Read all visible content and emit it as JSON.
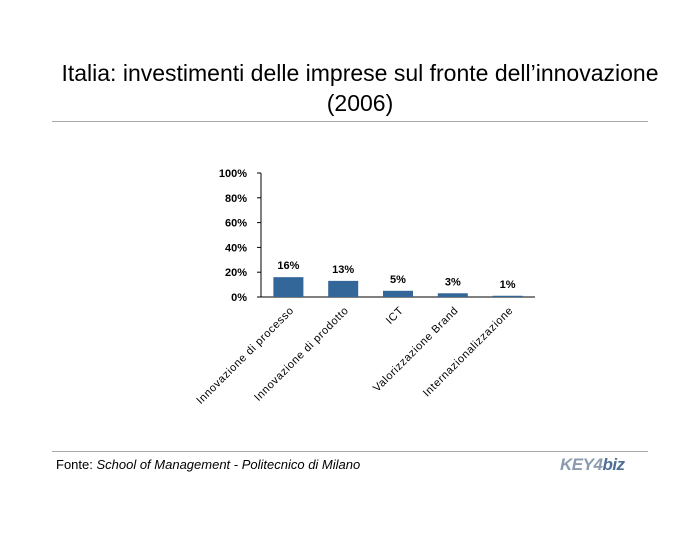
{
  "slide": {
    "title_line1": "Italia: investimenti delle imprese sul fronte dell’innovazione",
    "title_line2": "(2006)"
  },
  "footer": {
    "prefix": "Fonte: ",
    "source": "School of Management - Politecnico di Milano"
  },
  "logo": {
    "text_key": "KEY",
    "text_four": "4",
    "text_biz": "biz"
  },
  "colors": {
    "bar": "#336699",
    "axis": "#000000",
    "rule": "#a8a8a8"
  },
  "chart_data": {
    "type": "bar",
    "categories": [
      "Innovazione di processo",
      "Innovazione di prodotto",
      "ICT",
      "Valorizzazione Brand",
      "Internazionalizzazione"
    ],
    "values": [
      16,
      13,
      5,
      3,
      1
    ],
    "data_labels": [
      "16%",
      "13%",
      "5%",
      "3%",
      "1%"
    ],
    "y_ticks": [
      0,
      20,
      40,
      60,
      80,
      100
    ],
    "y_tick_labels": [
      "0%",
      "20%",
      "40%",
      "60%",
      "80%",
      "100%"
    ],
    "ylim": [
      0,
      100
    ],
    "xlabel": "",
    "ylabel": "",
    "grid": false,
    "legend": "none"
  }
}
